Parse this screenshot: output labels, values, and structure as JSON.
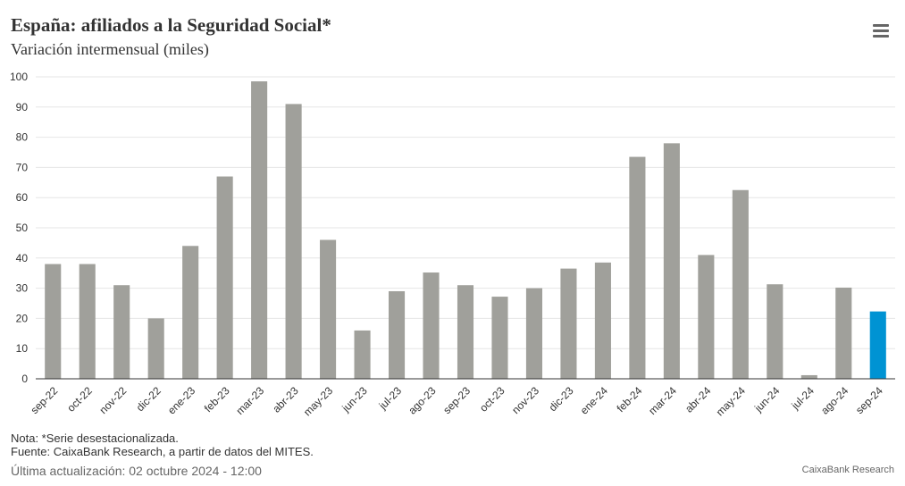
{
  "header": {
    "title": "España: afiliados a la Seguridad Social*",
    "subtitle": "Variación intermensual (miles)"
  },
  "footer": {
    "note": "Nota: *Serie desestacionalizada.",
    "source": "Fuente: CaixaBank Research, a partir de datos del MITES.",
    "updated": "Última actualización: 02 octubre 2024 - 12:00",
    "credits": "CaixaBank Research"
  },
  "menu_icon": "hamburger-menu-icon",
  "colors": {
    "bar": "#a0a09b",
    "highlight": "#0093d3",
    "grid": "#e6e6e6",
    "axis": "#333333",
    "label": "#333333"
  },
  "chart_data": {
    "type": "bar",
    "categories": [
      "sep-22",
      "oct-22",
      "nov-22",
      "dic-22",
      "ene-23",
      "feb-23",
      "mar-23",
      "abr-23",
      "may-23",
      "jun-23",
      "jul-23",
      "ago-23",
      "sep-23",
      "oct-23",
      "nov-23",
      "dic-23",
      "ene-24",
      "feb-24",
      "mar-24",
      "abr-24",
      "may-24",
      "jun-24",
      "jul-24",
      "ago-24",
      "sep-24"
    ],
    "values": [
      38,
      38,
      31,
      20,
      44,
      67,
      98.5,
      91,
      46,
      16,
      29,
      35.2,
      31,
      27.2,
      30,
      36.5,
      38.5,
      73.5,
      78,
      41,
      62.5,
      31.3,
      1.2,
      30.2,
      22.3
    ],
    "highlight_category": "sep-24",
    "ylim": [
      0,
      100
    ],
    "yticks": [
      0,
      10,
      20,
      30,
      40,
      50,
      60,
      70,
      80,
      90,
      100
    ],
    "xlabel": "",
    "ylabel": "",
    "grid": true,
    "legend": false
  }
}
